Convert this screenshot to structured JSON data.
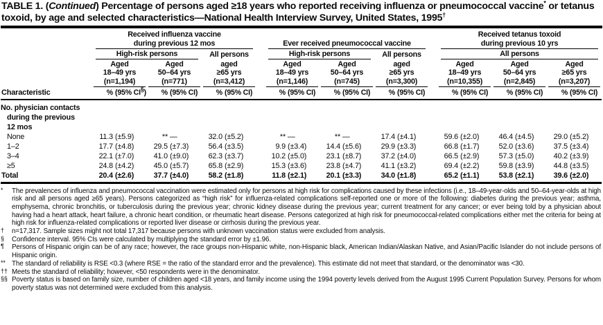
{
  "title": {
    "lead": "TABLE 1. (",
    "continued": "Continued",
    "part1": ") Percentage of persons aged ≥18 years who reported receiving influenza or pneumococcal vaccine",
    "sup1": "*",
    "part2": " or tetanus toxoid, by age and selected characteristics—National Health Interview Survey, United States, 1995",
    "sup2": "†"
  },
  "table": {
    "characteristic_label": "Characteristic",
    "pct_label": "%",
    "groups": [
      {
        "title_line1": "Received influenza vaccine",
        "title_line2": "during previous 12 mos",
        "subgroups": [
          {
            "label": "High-risk persons"
          },
          {
            "label": "All persons"
          }
        ]
      },
      {
        "title_line1": "",
        "title_line2": "Ever received pneumococcal vaccine",
        "subgroups": [
          {
            "label": "High-risk persons"
          },
          {
            "label": "All persons"
          }
        ]
      },
      {
        "title_line1": "Received tetanus toxoid",
        "title_line2": "during previous 10 yrs",
        "subgroups": [
          {
            "label": "All persons"
          }
        ]
      }
    ],
    "columns": [
      {
        "aged": "Aged",
        "range": "18–49 yrs",
        "n": "(n=1,194)",
        "ci_pre": "(95% CI",
        "ci_sup": "§",
        "ci_post": ")"
      },
      {
        "aged": "Aged",
        "range": "50–64 yrs",
        "n": "(n=771)",
        "ci_pre": "(95% CI",
        "ci_sup": "",
        "ci_post": ")"
      },
      {
        "aged": "aged",
        "range": "≥65 yrs",
        "n": "(n=3,412)",
        "ci_pre": "(95% CI",
        "ci_sup": "",
        "ci_post": ")"
      },
      {
        "aged": "Aged",
        "range": "18–49 yrs",
        "n": "(n=1,146)",
        "ci_pre": "(95% CI",
        "ci_sup": "",
        "ci_post": ")"
      },
      {
        "aged": "Aged",
        "range": "50–64 yrs",
        "n": "(n=745)",
        "ci_pre": "(95% CI",
        "ci_sup": "",
        "ci_post": ")"
      },
      {
        "aged": "aged",
        "range": "≥65 yrs",
        "n": "(n=3,300)",
        "ci_pre": "(95% CI",
        "ci_sup": "",
        "ci_post": ")"
      },
      {
        "aged": "Aged",
        "range": "18–49 yrs",
        "n": "(n=10,355)",
        "ci_pre": "(95% CI",
        "ci_sup": "",
        "ci_post": ")"
      },
      {
        "aged": "Aged",
        "range": "50–64 yrs",
        "n": "(n=2,845)",
        "ci_pre": "(95% CI",
        "ci_sup": "",
        "ci_post": ")"
      },
      {
        "aged": "Aged",
        "range": "≥65 yrs",
        "n": "(n=3,207)",
        "ci_pre": "(95% CI",
        "ci_sup": "",
        "ci_post": ")"
      }
    ],
    "section_lines": [
      "No. physician contacts",
      "during the previous",
      "12 mos"
    ],
    "rows": [
      {
        "label": "None",
        "bold": false,
        "cells": [
          [
            "11.3",
            "(±5.9)"
          ],
          [
            "**",
            "—"
          ],
          [
            "32.0",
            "(±5.2)"
          ],
          [
            "**",
            "—"
          ],
          [
            "**",
            "—"
          ],
          [
            "17.4",
            "(±4.1)"
          ],
          [
            "59.6",
            "(±2.0)"
          ],
          [
            "46.4",
            "(±4.5)"
          ],
          [
            "29.0",
            "(±5.2)"
          ]
        ]
      },
      {
        "label": "1–2",
        "bold": false,
        "cells": [
          [
            "17.7",
            "(±4.8)"
          ],
          [
            "29.5",
            "(±7.3)"
          ],
          [
            "56.4",
            "(±3.5)"
          ],
          [
            "9.9",
            "(±3.4)"
          ],
          [
            "14.4",
            "(±5.6)"
          ],
          [
            "29.9",
            "(±3.3)"
          ],
          [
            "66.8",
            "(±1.7)"
          ],
          [
            "52.0",
            "(±3.6)"
          ],
          [
            "37.5",
            "(±3.4)"
          ]
        ]
      },
      {
        "label": "3–4",
        "bold": false,
        "cells": [
          [
            "22.1",
            "(±7.0)"
          ],
          [
            "41.0",
            "(±9.0)"
          ],
          [
            "62.3",
            "(±3.7)"
          ],
          [
            "10.2",
            "(±5.0)"
          ],
          [
            "23.1",
            "(±8.7)"
          ],
          [
            "37.2",
            "(±4.0)"
          ],
          [
            "66.5",
            "(±2.9)"
          ],
          [
            "57.3",
            "(±5.0)"
          ],
          [
            "40.2",
            "(±3.9)"
          ]
        ]
      },
      {
        "label": "≥5",
        "bold": false,
        "cells": [
          [
            "24.8",
            "(±4.2)"
          ],
          [
            "45.0",
            "(±5.7)"
          ],
          [
            "65.8",
            "(±2.9)"
          ],
          [
            "15.3",
            "(±3.6)"
          ],
          [
            "23.8",
            "(±4.7)"
          ],
          [
            "41.1",
            "(±3.2)"
          ],
          [
            "69.4",
            "(±2.2)"
          ],
          [
            "59.8",
            "(±3.9)"
          ],
          [
            "44.8",
            "(±3.5)"
          ]
        ]
      },
      {
        "label": "Total",
        "bold": true,
        "cells": [
          [
            "20.4",
            "(±2.6)"
          ],
          [
            "37.7",
            "(±4.0)"
          ],
          [
            "58.2",
            "(±1.8)"
          ],
          [
            "11.8",
            "(±2.1)"
          ],
          [
            "20.1",
            "(±3.3)"
          ],
          [
            "34.0",
            "(±1.8)"
          ],
          [
            "65.2",
            "(±1.1)"
          ],
          [
            "53.8",
            "(±2.1)"
          ],
          [
            "39.6",
            "(±2.0)"
          ]
        ]
      }
    ]
  },
  "footnotes": [
    {
      "marker": "*",
      "text": "The prevalences of influenza and pneumococcal vaccination were estimated only for persons at high risk for complications caused by these infections (i.e., 18–49-year-olds and 50–64-year-olds at high risk and all persons aged ≥65 years). Persons categorized as “high risk” for influenza-related complications self-reported one or more of the following: diabetes during the previous year; asthma, emphysema, chronic bronchitis, or tuberculosis during the previous year; chronic kidney disease during the previous year; current treatment for any cancer; or ever being told by a physician about having had a heart attack, heart failure, a chronic heart condition, or rheumatic heart disease. Persons categorized at high risk for pneumococcal-related complications either met the criteria for being at high risk for influenza-related complications or reported liver disease or cirrhosis during the previous year."
    },
    {
      "marker": "†",
      "text": "n=17,317. Sample sizes might not total 17,317 because persons with unknown vaccination status were excluded from analysis."
    },
    {
      "marker": "§",
      "text": "Confidence interval. 95% CIs were calculated by multiplying the standard error by ±1.96."
    },
    {
      "marker": "¶",
      "text": "Persons of Hispanic origin can be of any race; however, the race groups non-Hispanic white, non-Hispanic black, American Indian/Alaskan Native, and Asian/Pacific Islander do not include persons of Hispanic origin."
    },
    {
      "marker": "**",
      "text": "The standard of reliability is RSE <0.3 (where RSE = the ratio of the standard error and the prevalence). This estimate did not meet that standard, or the denominator was <30."
    },
    {
      "marker": "††",
      "text": "Meets the standard of reliability; however, <50 respondents were in the denominator."
    },
    {
      "marker": "§§",
      "text": "Poverty status is based on family size, number of children aged <18 years, and family income using the 1994 poverty levels derived from the August 1995 Current Population Survey. Persons for whom poverty status was not determined were excluded from this analysis."
    }
  ]
}
